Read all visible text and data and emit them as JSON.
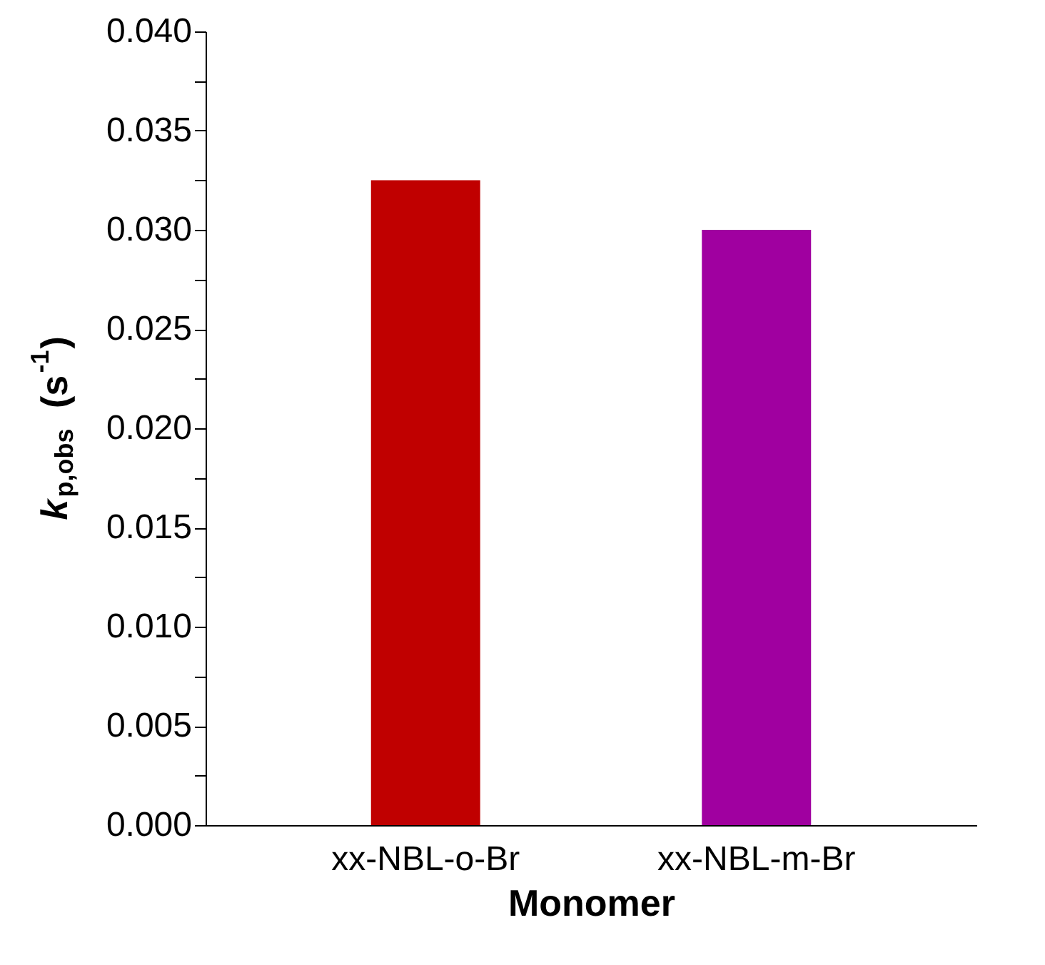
{
  "chart_data": {
    "type": "bar",
    "xlabel": "Monomer",
    "ylabel": "k$_{p,obs}$ (s$^{-1}$)",
    "categories": [
      "xx-NBL-o-Br",
      "xx-NBL-m-Br"
    ],
    "values": [
      0.0325,
      0.03
    ],
    "colors": [
      "#c00000",
      "#a000a0"
    ],
    "ylim": [
      0,
      0.04
    ],
    "yticks": [
      {
        "value": 0,
        "label": "0.000"
      },
      {
        "value": 0.0025,
        "label": null
      },
      {
        "value": 0.005,
        "label": "0.005"
      },
      {
        "value": 0.0075,
        "label": null
      },
      {
        "value": 0.01,
        "label": "0.010"
      },
      {
        "value": 0.0125,
        "label": null
      },
      {
        "value": 0.015,
        "label": "0.015"
      },
      {
        "value": 0.0175,
        "label": null
      },
      {
        "value": 0.02,
        "label": "0.020"
      },
      {
        "value": 0.0225,
        "label": null
      },
      {
        "value": 0.025,
        "label": "0.025"
      },
      {
        "value": 0.0275,
        "label": null
      },
      {
        "value": 0.03,
        "label": "0.030"
      },
      {
        "value": 0.0325,
        "label": null
      },
      {
        "value": 0.035,
        "label": "0.035"
      },
      {
        "value": 0.0375,
        "label": null
      },
      {
        "value": 0.04,
        "label": "0.040"
      }
    ],
    "grid": false
  }
}
